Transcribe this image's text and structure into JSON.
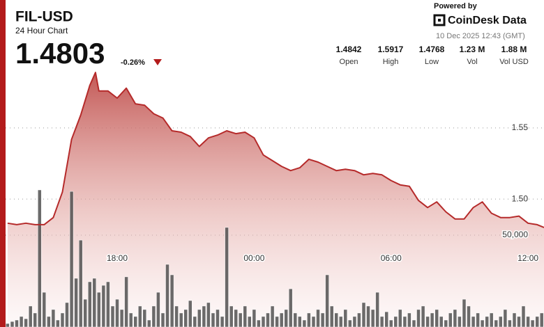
{
  "header": {
    "symbol": "FIL-USD",
    "subtitle": "24 Hour Chart",
    "price": "1.4803",
    "change": "-0.26%",
    "powered_by": "Powered by",
    "brand": "CoinDesk Data",
    "timestamp": "10 Dec 2025 12:43 (GMT)",
    "stats": [
      {
        "value": "1.4842",
        "label": "Open"
      },
      {
        "value": "1.5917",
        "label": "High"
      },
      {
        "value": "1.4768",
        "label": "Low"
      },
      {
        "value": "1.23 M",
        "label": "Vol"
      },
      {
        "value": "1.88 M",
        "label": "Vol USD"
      }
    ]
  },
  "chart_data": {
    "type": "area",
    "xlim": [
      -10.89,
      12.7
    ],
    "xticks": [
      {
        "value": -6,
        "label": "18:00"
      },
      {
        "value": 0,
        "label": "00:00"
      },
      {
        "value": 6,
        "label": "06:00"
      },
      {
        "value": 12,
        "label": "12:00"
      }
    ],
    "ylim": [
      1.41,
      1.64
    ],
    "yticks": [
      {
        "value": 1.5,
        "label": "1.50"
      },
      1.55
    ],
    "y2lim": [
      0,
      178000
    ],
    "y2ticks": [
      {
        "value": 50000,
        "label": "50,000"
      }
    ],
    "grid": true,
    "series": [
      {
        "type": "area",
        "color": "#b52a2a",
        "x": [
          -10.8,
          -10.4,
          -10,
          -9.6,
          -9.2,
          -8.8,
          -8.4,
          -8,
          -7.6,
          -7.2,
          -6.95,
          -6.8,
          -6.4,
          -6,
          -5.6,
          -5.2,
          -4.8,
          -4.4,
          -4,
          -3.6,
          -3.2,
          -2.8,
          -2.4,
          -2,
          -1.6,
          -1.2,
          -0.8,
          -0.4,
          0,
          0.4,
          0.8,
          1.2,
          1.6,
          2,
          2.4,
          2.8,
          3.2,
          3.6,
          4,
          4.4,
          4.8,
          5.2,
          5.6,
          6,
          6.4,
          6.8,
          7.2,
          7.6,
          8,
          8.4,
          8.8,
          9.2,
          9.6,
          10,
          10.4,
          10.8,
          11.2,
          11.6,
          12,
          12.4,
          12.7
        ],
        "values": [
          1.483,
          1.482,
          1.483,
          1.482,
          1.482,
          1.487,
          1.505,
          1.542,
          1.559,
          1.58,
          1.589,
          1.576,
          1.576,
          1.571,
          1.578,
          1.567,
          1.566,
          1.56,
          1.557,
          1.548,
          1.547,
          1.544,
          1.537,
          1.543,
          1.545,
          1.548,
          1.546,
          1.547,
          1.543,
          1.531,
          1.527,
          1.523,
          1.52,
          1.522,
          1.528,
          1.526,
          1.523,
          1.52,
          1.521,
          1.52,
          1.517,
          1.518,
          1.517,
          1.513,
          1.51,
          1.509,
          1.499,
          1.494,
          1.498,
          1.491,
          1.486,
          1.486,
          1.494,
          1.498,
          1.49,
          1.487,
          1.487,
          1.488,
          1.483,
          1.482,
          1.48
        ]
      },
      {
        "type": "bar",
        "axis": "y2",
        "color": "#4a4a4a",
        "x": [
          -10.8,
          -10.6,
          -10.4,
          -10.2,
          -10,
          -9.8,
          -9.6,
          -9.4,
          -9.2,
          -9,
          -8.8,
          -8.6,
          -8.4,
          -8.2,
          -8,
          -7.8,
          -7.6,
          -7.4,
          -7.2,
          -7,
          -6.8,
          -6.6,
          -6.4,
          -6.2,
          -6,
          -5.8,
          -5.6,
          -5.4,
          -5.2,
          -5,
          -4.8,
          -4.6,
          -4.4,
          -4.2,
          -4,
          -3.8,
          -3.6,
          -3.4,
          -3.2,
          -3,
          -2.8,
          -2.6,
          -2.4,
          -2.2,
          -2,
          -1.8,
          -1.6,
          -1.4,
          -1.2,
          -1,
          -0.8,
          -0.6,
          -0.4,
          -0.2,
          0,
          0.2,
          0.4,
          0.6,
          0.8,
          1,
          1.2,
          1.4,
          1.6,
          1.8,
          2,
          2.2,
          2.4,
          2.6,
          2.8,
          3,
          3.2,
          3.4,
          3.6,
          3.8,
          4,
          4.2,
          4.4,
          4.6,
          4.8,
          5,
          5.2,
          5.4,
          5.6,
          5.8,
          6,
          6.2,
          6.4,
          6.6,
          6.8,
          7,
          7.2,
          7.4,
          7.6,
          7.8,
          8,
          8.2,
          8.4,
          8.6,
          8.8,
          9,
          9.2,
          9.4,
          9.6,
          9.8,
          10,
          10.2,
          10.4,
          10.6,
          10.8,
          11,
          11.2,
          11.4,
          11.6,
          11.8,
          12,
          12.2,
          12.4,
          12.6
        ],
        "values": [
          1900,
          3000,
          3800,
          5700,
          4500,
          11400,
          7600,
          74600,
          18900,
          5700,
          9500,
          3800,
          7600,
          13300,
          73800,
          26500,
          47300,
          15100,
          24600,
          26500,
          18900,
          22700,
          24600,
          11400,
          15100,
          9500,
          27300,
          7600,
          5700,
          11400,
          9500,
          3800,
          11400,
          18900,
          7600,
          34100,
          28400,
          11400,
          7600,
          9500,
          14400,
          5700,
          9500,
          11400,
          13300,
          7600,
          9500,
          5700,
          54200,
          11400,
          9500,
          7600,
          11400,
          5700,
          9500,
          3800,
          5700,
          7600,
          11400,
          5700,
          7600,
          9500,
          20800,
          7600,
          5700,
          3800,
          7600,
          5700,
          9500,
          7600,
          28400,
          11400,
          7600,
          5700,
          9500,
          3800,
          5700,
          7600,
          13300,
          11400,
          9500,
          18900,
          5700,
          8300,
          3800,
          5700,
          9500,
          5700,
          7600,
          3800,
          9500,
          11400,
          5700,
          7600,
          9500,
          5700,
          3800,
          7600,
          9500,
          5700,
          15100,
          11400,
          5700,
          7600,
          3800,
          5700,
          7600,
          3800,
          5700,
          9500,
          3800,
          7600,
          5700,
          11400,
          5700,
          3800,
          5700,
          7600
        ]
      }
    ]
  }
}
